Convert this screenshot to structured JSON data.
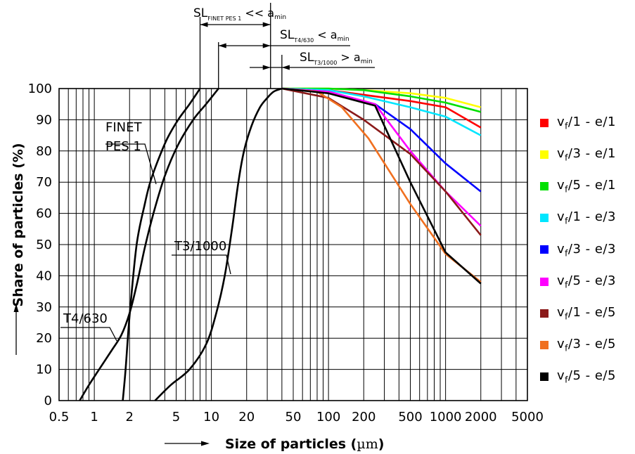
{
  "chart_data": {
    "type": "line",
    "xscale": "log",
    "xlim": [
      0.5,
      5000
    ],
    "ylim": [
      0,
      100
    ],
    "grid": true,
    "legend_position": "right",
    "xlabel_prefix": "Size of particles (",
    "xlabel_unit": "µm",
    "xlabel_suffix": ")",
    "ylabel": "Share of particles (%)",
    "xticks": [
      0.5,
      1,
      2,
      5,
      10,
      20,
      50,
      100,
      200,
      500,
      1000,
      2000,
      5000
    ],
    "xtick_labels": [
      "0.5",
      "1",
      "2",
      "5",
      "10",
      "20",
      "50",
      "100",
      "200",
      "500",
      "1000",
      "2000",
      "5000"
    ],
    "yticks": [
      0,
      10,
      20,
      30,
      40,
      50,
      60,
      70,
      80,
      90,
      100
    ],
    "ytick_labels": [
      "0",
      "10",
      "20",
      "30",
      "40",
      "50",
      "60",
      "70",
      "80",
      "90",
      "100"
    ],
    "curves": [
      {
        "label": "FINET PES 1",
        "color": "#000000",
        "x": [
          1.75,
          1.85,
          2.0,
          2.3,
          2.7,
          3.0,
          3.5,
          4.2,
          5.2,
          6.5,
          8.0
        ],
        "y": [
          0,
          10,
          27,
          50,
          63,
          70,
          77,
          84,
          90,
          95,
          100
        ]
      },
      {
        "label": "T4/630",
        "color": "#000000",
        "x": [
          0.75,
          0.9,
          1.1,
          1.4,
          1.7,
          2.0,
          2.3,
          2.7,
          3.2,
          4.0,
          5.2,
          7.0,
          9.0,
          11.5
        ],
        "y": [
          0,
          5,
          10,
          16,
          21,
          28,
          37,
          49,
          60,
          72,
          82,
          90,
          95,
          100
        ]
      },
      {
        "label": "T3/1000",
        "color": "#000000",
        "x": [
          3.3,
          4.5,
          6.5,
          9.0,
          11.0,
          13.0,
          15.0,
          17.0,
          19.0,
          22.0,
          26.0,
          30.0,
          34.0,
          40.0
        ],
        "y": [
          0,
          5,
          10,
          18,
          28,
          40,
          55,
          70,
          80,
          88,
          94,
          97,
          99,
          100
        ]
      }
    ],
    "series": [
      {
        "name_parts": [
          "v",
          "f",
          "/1 - e/1"
        ],
        "color": "#ff0000",
        "x": [
          40,
          100,
          200,
          500,
          1000,
          2000
        ],
        "y": [
          100,
          99.5,
          98,
          96,
          94,
          87.5
        ]
      },
      {
        "name_parts": [
          "v",
          "f",
          "/3 - e/1"
        ],
        "color": "#ffff00",
        "x": [
          40,
          100,
          200,
          500,
          1000,
          2000
        ],
        "y": [
          100,
          100,
          99.5,
          98.5,
          97,
          94
        ]
      },
      {
        "name_parts": [
          "v",
          "f",
          "/5 - e/1"
        ],
        "color": "#00e000",
        "x": [
          40,
          100,
          200,
          500,
          1000,
          2000
        ],
        "y": [
          100,
          100,
          99.5,
          97.5,
          95.5,
          92.5
        ]
      },
      {
        "name_parts": [
          "v",
          "f",
          "/1 - e/3"
        ],
        "color": "#00e6ff",
        "x": [
          40,
          100,
          200,
          500,
          1000,
          2000
        ],
        "y": [
          100,
          99.5,
          97.5,
          94,
          91,
          85
        ]
      },
      {
        "name_parts": [
          "v",
          "f",
          "/3 - e/3"
        ],
        "color": "#0000ff",
        "x": [
          40,
          100,
          200,
          250,
          500,
          1000,
          2000
        ],
        "y": [
          100,
          99,
          96,
          95,
          87,
          76,
          67
        ]
      },
      {
        "name_parts": [
          "v",
          "f",
          "/5 - e/3"
        ],
        "color": "#ff00ff",
        "x": [
          40,
          100,
          200,
          250,
          500,
          1000,
          2000
        ],
        "y": [
          100,
          99,
          96,
          95,
          80,
          67,
          56
        ]
      },
      {
        "name_parts": [
          "v",
          "f",
          "/1 - e/5"
        ],
        "color": "#8b1a1a",
        "x": [
          40,
          100,
          200,
          500,
          1000,
          2000
        ],
        "y": [
          100,
          97,
          90,
          79,
          67,
          53
        ]
      },
      {
        "name_parts": [
          "v",
          "f",
          "/3 - e/5"
        ],
        "color": "#f07020",
        "x": [
          40,
          80,
          130,
          220,
          500,
          1000,
          2000
        ],
        "y": [
          100,
          99,
          94,
          84,
          63,
          47,
          38
        ]
      },
      {
        "name_parts": [
          "v",
          "f",
          "/5 - e/5"
        ],
        "color": "#000000",
        "x": [
          40,
          100,
          250,
          500,
          1000,
          2000
        ],
        "y": [
          100,
          98.5,
          94.5,
          70,
          47.5,
          37.5
        ]
      }
    ],
    "annotations": [
      {
        "text": "FINET",
        "x": 1.6,
        "y": 88
      },
      {
        "text": "PES 1",
        "x": 1.6,
        "y": 82
      }
    ],
    "dimension_marks": [
      {
        "label": "SL",
        "sub": "FINET PES 1",
        "rel": "<<",
        "a": "a",
        "a_sub": "min",
        "from": 8.0,
        "to": 32
      },
      {
        "label": "SL",
        "sub": "T4/630",
        "rel": "<",
        "a": "a",
        "a_sub": "min",
        "from": 11.5,
        "to": 32
      },
      {
        "label": "SL",
        "sub": "T3/1000",
        "rel": ">",
        "a": "a",
        "a_sub": "min",
        "from": 32,
        "to": 40
      }
    ]
  }
}
